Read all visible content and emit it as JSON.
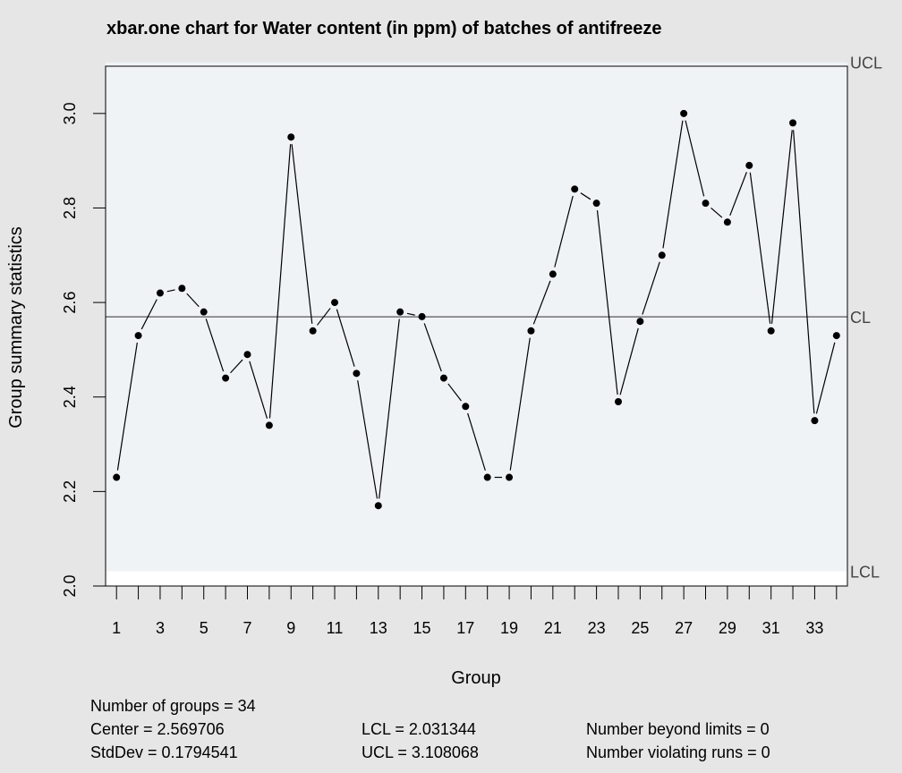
{
  "chart_data": {
    "type": "line",
    "title": "xbar.one chart for Water content (in ppm) of batches of antifreeze",
    "xlabel": "Group",
    "ylabel": "Group summary statistics",
    "xlim": [
      0.5,
      34.5
    ],
    "ylim": [
      2.0,
      3.1
    ],
    "xticks": [
      1,
      3,
      5,
      7,
      9,
      11,
      13,
      15,
      17,
      19,
      21,
      23,
      25,
      27,
      29,
      31,
      33
    ],
    "yticks": [
      "2.0",
      "2.2",
      "2.4",
      "2.6",
      "2.8",
      "3.0"
    ],
    "x": [
      1,
      2,
      3,
      4,
      5,
      6,
      7,
      8,
      9,
      10,
      11,
      12,
      13,
      14,
      15,
      16,
      17,
      18,
      19,
      20,
      21,
      22,
      23,
      24,
      25,
      26,
      27,
      28,
      29,
      30,
      31,
      32,
      33,
      34
    ],
    "series": [
      {
        "values": [
          2.23,
          2.53,
          2.62,
          2.63,
          2.58,
          2.44,
          2.49,
          2.34,
          2.95,
          2.54,
          2.6,
          2.45,
          2.17,
          2.58,
          2.57,
          2.44,
          2.38,
          2.23,
          2.23,
          2.54,
          2.66,
          2.84,
          2.81,
          2.39,
          2.56,
          2.7,
          3.0,
          2.81,
          2.77,
          2.89,
          2.54,
          2.98,
          2.35,
          2.53
        ]
      }
    ],
    "limits": {
      "UCL": {
        "label": "UCL",
        "value": 3.108068
      },
      "CL": {
        "label": "CL",
        "value": 2.569706
      },
      "LCL": {
        "label": "LCL",
        "value": 2.031344
      }
    },
    "grid": false
  },
  "stats": {
    "groups": "Number of groups = 34",
    "center": "Center = 2.569706",
    "stddev": "StdDev = 0.1794541",
    "lcl": "LCL = 2.031344",
    "ucl": "UCL = 3.108068",
    "beyond": "Number beyond limits = 0",
    "runs": "Number violating runs = 0"
  },
  "colors": {
    "background": "#e6e6e6",
    "plot_fill": "#ffffff",
    "control_band": "#eff3f6",
    "line": "#000000"
  }
}
